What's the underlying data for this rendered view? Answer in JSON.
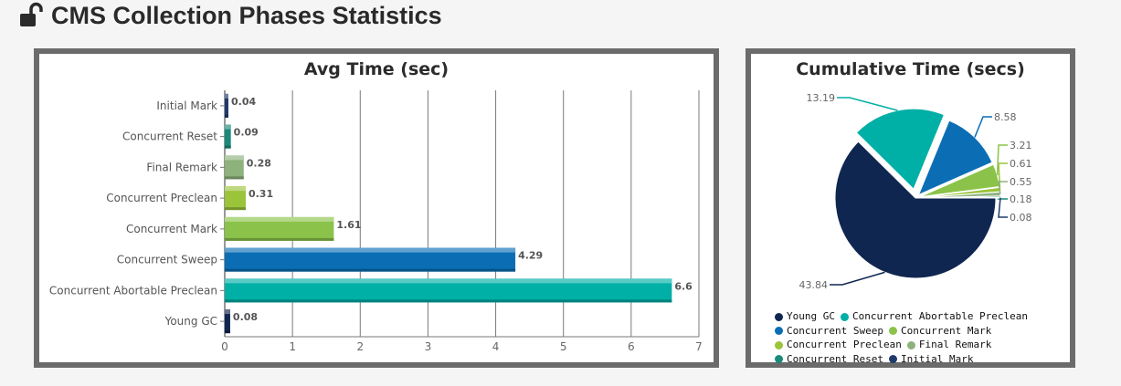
{
  "heading": {
    "title": "CMS Collection Phases Statistics",
    "icon": "unlock-icon"
  },
  "colors": {
    "Initial Mark": "#1f3a6b",
    "Concurrent Reset": "#1a8a7a",
    "Final Remark": "#8db27c",
    "Concurrent Preclean": "#9bc43b",
    "Concurrent Mark": "#8bc34a",
    "Concurrent Sweep": "#0b6eb5",
    "Concurrent Abortable Preclean": "#00afa5",
    "Young GC": "#0f2650"
  },
  "chart_data": [
    {
      "type": "bar",
      "orientation": "horizontal",
      "title": "Avg Time (sec)",
      "categories": [
        "Initial Mark",
        "Concurrent Reset",
        "Final Remark",
        "Concurrent Preclean",
        "Concurrent Mark",
        "Concurrent Sweep",
        "Concurrent Abortable Preclean",
        "Young GC"
      ],
      "values": [
        0.04,
        0.09,
        0.28,
        0.31,
        1.61,
        4.29,
        6.6,
        0.08
      ],
      "value_labels": [
        "0.04",
        "0.09",
        "0.28",
        "0.31",
        "1.61",
        "4.29",
        "6.6",
        "0.08"
      ],
      "xlim": [
        0,
        7
      ],
      "xticks": [
        "0",
        "1",
        "2",
        "3",
        "4",
        "5",
        "6",
        "7"
      ],
      "grid": true
    },
    {
      "type": "pie",
      "title": "Cumulative Time (secs)",
      "labels": [
        "Young GC",
        "Concurrent Abortable Preclean",
        "Concurrent Sweep",
        "Concurrent Mark",
        "Concurrent Preclean",
        "Final Remark",
        "Concurrent Reset",
        "Initial Mark"
      ],
      "values": [
        43.84,
        13.19,
        8.58,
        3.21,
        0.61,
        0.55,
        0.18,
        0.08
      ],
      "value_labels": [
        "43.84",
        "13.19",
        "8.58",
        "3.21",
        "0.61",
        "0.55",
        "0.18",
        "0.08"
      ],
      "legend_position": "bottom"
    }
  ]
}
